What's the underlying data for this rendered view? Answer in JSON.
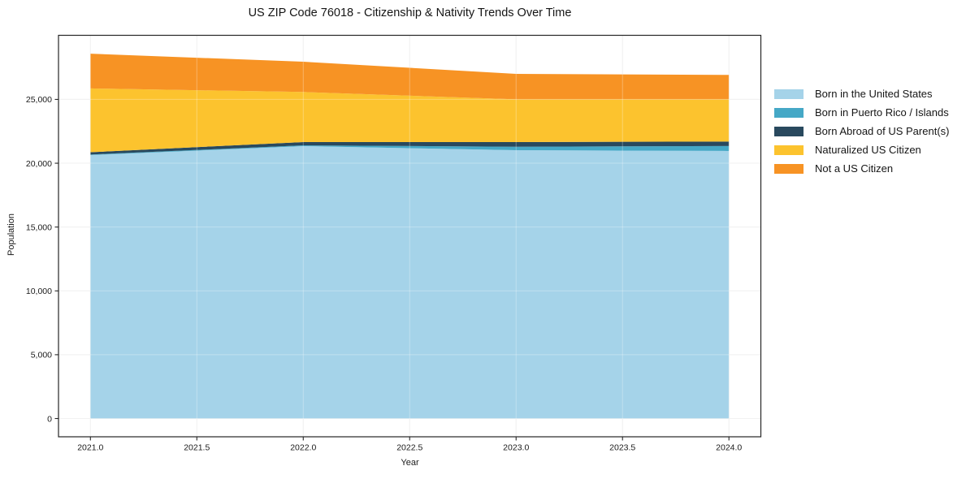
{
  "chart_data": {
    "type": "area",
    "stacked": true,
    "title": "US ZIP Code 76018 - Citizenship & Nativity Trends Over Time",
    "xlabel": "Year",
    "ylabel": "Population",
    "x": [
      2021,
      2022,
      2023,
      2024
    ],
    "series": [
      {
        "name": "Born in the United States",
        "color": "#a5d3e9",
        "values": [
          20640,
          21340,
          21020,
          20960
        ]
      },
      {
        "name": "Born in Puerto Rico / Islands",
        "color": "#45a8c6",
        "values": [
          40,
          60,
          270,
          390
        ]
      },
      {
        "name": "Born Abroad of US Parent(s)",
        "color": "#29495e",
        "values": [
          180,
          260,
          370,
          350
        ]
      },
      {
        "name": "Naturalized US Citizen",
        "color": "#fcc32e",
        "values": [
          5000,
          3920,
          3340,
          3300
        ]
      },
      {
        "name": "Not a US Citizen",
        "color": "#f79324",
        "values": [
          2720,
          2370,
          2000,
          1920
        ]
      }
    ],
    "x_tick_values": [
      2021.0,
      2021.5,
      2022.0,
      2022.5,
      2023.0,
      2023.5,
      2024.0
    ],
    "x_tick_labels": [
      "2021.0",
      "2021.5",
      "2022.0",
      "2022.5",
      "2023.0",
      "2023.5",
      "2024.0"
    ],
    "y_tick_values": [
      0,
      5000,
      10000,
      15000,
      20000,
      25000
    ],
    "y_tick_labels": [
      "0",
      "5,000",
      "10,000",
      "15,000",
      "20,000",
      "25,000"
    ],
    "xlim": [
      2020.85,
      2024.15
    ],
    "ylim": [
      -1430,
      30020
    ],
    "grid": true,
    "legend_position": "right"
  },
  "style": {
    "background": "#ffffff",
    "grid_color": "#ebebeb",
    "grid_overlay_color": "rgba(255,255,255,0.30)",
    "spine_color": "#262626",
    "tick_color": "#262626",
    "text_color": "#1a1a1a"
  }
}
